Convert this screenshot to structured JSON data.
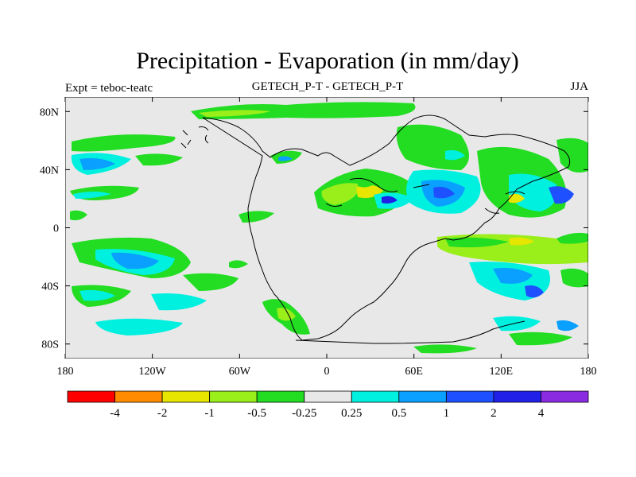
{
  "figure": {
    "title": "Precipitation - Evaporation (in mm/day)",
    "left_string": "Expt = teboc-teatc",
    "center_string": "GETECH_P-T - GETECH_P-T",
    "right_string": "JJA"
  },
  "map": {
    "projection": "cylindrical-equidistant",
    "lon_range": [
      -180,
      180
    ],
    "lat_range": [
      -90,
      90
    ],
    "lon_ticks": [
      {
        "value": -180,
        "label": "180"
      },
      {
        "value": -120,
        "label": "120W"
      },
      {
        "value": -60,
        "label": "60W"
      },
      {
        "value": 0,
        "label": "0"
      },
      {
        "value": 60,
        "label": "60E"
      },
      {
        "value": 120,
        "label": "120E"
      },
      {
        "value": 180,
        "label": "180"
      }
    ],
    "lat_ticks": [
      {
        "value": 80,
        "label": "80N"
      },
      {
        "value": 40,
        "label": "40N"
      },
      {
        "value": 0,
        "label": "0"
      },
      {
        "value": -40,
        "label": "40S"
      },
      {
        "value": -80,
        "label": "80S"
      }
    ]
  },
  "colorbar": {
    "colors": [
      "#ff0000",
      "#ff8c00",
      "#e6e600",
      "#9aee1a",
      "#22dd22",
      "#e8e8e8",
      "#00f0e0",
      "#0aa0ff",
      "#1e50ff",
      "#2020e8",
      "#8a2be2"
    ],
    "labels": [
      "-4",
      "-2",
      "-1",
      "-0.5",
      "-0.25",
      "0.25",
      "0.5",
      "1",
      "2",
      "4"
    ]
  },
  "colors": {
    "background": "#e8e8e8",
    "coast": "#000000"
  }
}
